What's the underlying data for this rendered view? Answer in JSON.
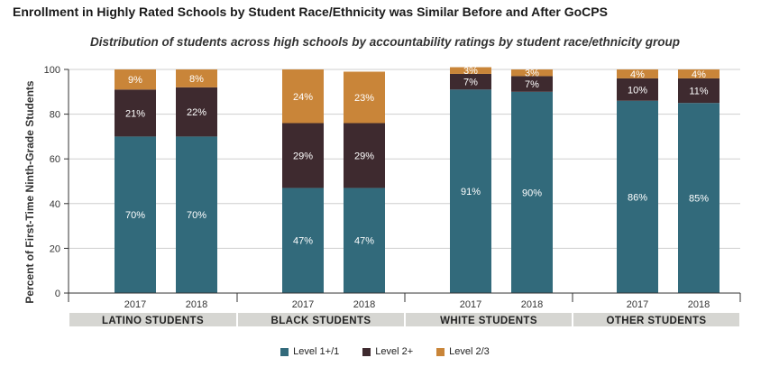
{
  "chart_data": {
    "type": "bar",
    "stacked": true,
    "title": "Enrollment in Highly Rated Schools by Student Race/Ethnicity was Similar Before and After GoCPS",
    "subtitle": "Distribution of students across high schools by accountability ratings by student race/ethnicity group",
    "ylabel": "Percent of First-Time Ninth-Grade Students",
    "ylim": [
      0,
      100
    ],
    "yticks": [
      0,
      20,
      40,
      60,
      80,
      100
    ],
    "grid": true,
    "legend_position": "bottom-center",
    "groups": [
      {
        "name": "LATINO STUDENTS",
        "categories": [
          "2017",
          "2018"
        ]
      },
      {
        "name": "BLACK STUDENTS",
        "categories": [
          "2017",
          "2018"
        ]
      },
      {
        "name": "WHITE STUDENTS",
        "categories": [
          "2017",
          "2018"
        ]
      },
      {
        "name": "OTHER STUDENTS",
        "categories": [
          "2017",
          "2018"
        ]
      }
    ],
    "series": [
      {
        "name": "Level 1+/1",
        "color": "#326a7b",
        "values": [
          70,
          70,
          47,
          47,
          91,
          90,
          86,
          85
        ],
        "labels": [
          "70%",
          "70%",
          "47%",
          "47%",
          "91%",
          "90%",
          "86%",
          "85%"
        ]
      },
      {
        "name": "Level 2+",
        "color": "#3e2a2f",
        "values": [
          21,
          22,
          29,
          29,
          7,
          7,
          10,
          11
        ],
        "labels": [
          "21%",
          "22%",
          "29%",
          "29%",
          "7%",
          "7%",
          "10%",
          "11%"
        ]
      },
      {
        "name": "Level 2/3",
        "color": "#c98539",
        "values": [
          9,
          8,
          24,
          23,
          3,
          3,
          4,
          4
        ],
        "labels": [
          "9%",
          "8%",
          "24%",
          "23%",
          "3%",
          "3%",
          "4%",
          "4%"
        ]
      }
    ]
  }
}
